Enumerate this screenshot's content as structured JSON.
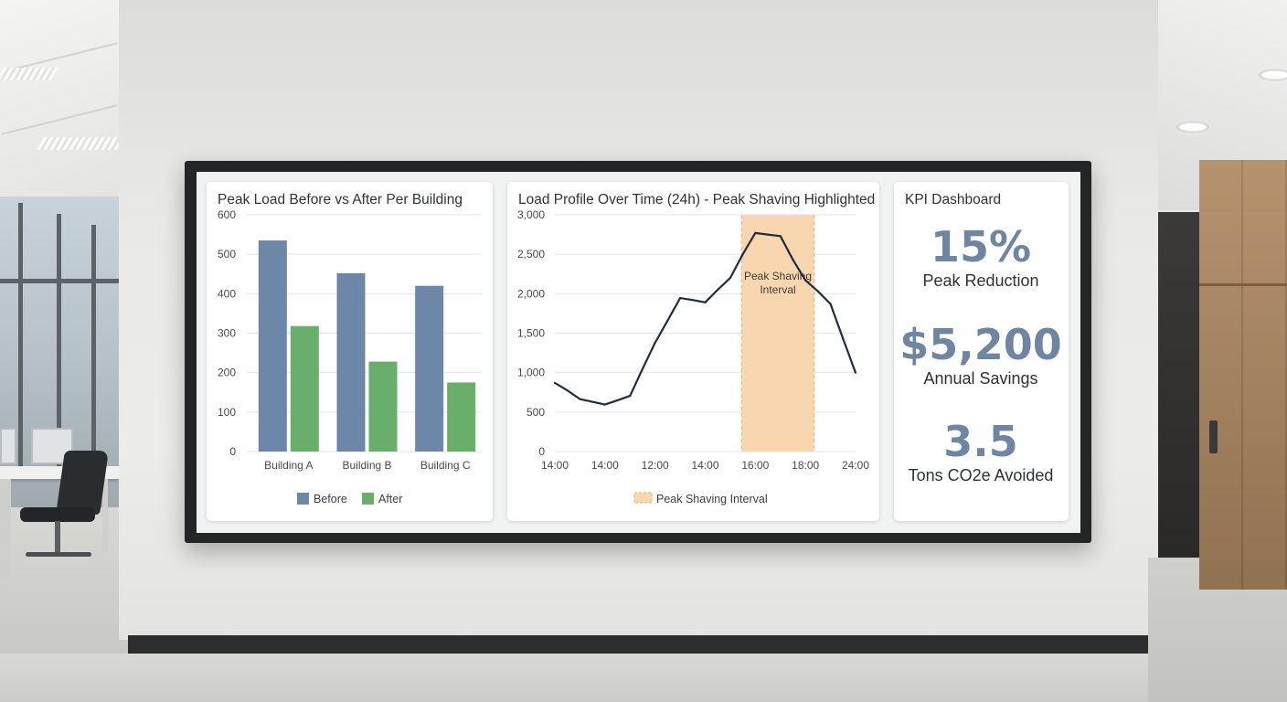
{
  "panels": {
    "bar_chart": {
      "title": "Peak Load Before vs After Per Building"
    },
    "line_chart": {
      "title": "Load Profile Over Time (24h) - Peak Shaving Highlighted",
      "band_label_line1": "Peak Shaving",
      "band_label_line2": "Interval"
    },
    "kpi": {
      "title": "KPI Dashboard",
      "items": [
        {
          "value": "15%",
          "label": "Peak Reduction"
        },
        {
          "value": "$5,200",
          "label": "Annual Savings"
        },
        {
          "value": "3.5",
          "label": "Tons CO2e Avoided"
        }
      ]
    }
  },
  "colors": {
    "before": "#6d87a8",
    "after": "#6aae6c",
    "line": "#1f2d3d",
    "band": "#f8d7b0",
    "band_border": "#e7b07a",
    "kpi_value": "#6f86a2"
  },
  "chart_data": [
    {
      "type": "bar",
      "title": "Peak Load Before vs After Per Building",
      "categories": [
        "Building A",
        "Building B",
        "Building C"
      ],
      "series": [
        {
          "name": "Before",
          "values": [
            535,
            452,
            420
          ]
        },
        {
          "name": "After",
          "values": [
            318,
            228,
            175
          ]
        }
      ],
      "yticks": [
        "0",
        "100",
        "200",
        "300",
        "400",
        "500",
        "600"
      ],
      "ylim": [
        0,
        600
      ],
      "legend": "bottom",
      "grid": true
    },
    {
      "type": "line",
      "title": "Load Profile Over Time (24h) - Peak Shaving Highlighted",
      "x_tick_labels": [
        "14:00",
        "14:00",
        "12:00",
        "14:00",
        "16:00",
        "18:00",
        "24:00"
      ],
      "x_range": [
        0,
        24
      ],
      "x": [
        0,
        1,
        2,
        3,
        4,
        5,
        6,
        7,
        8,
        9,
        10,
        11,
        12,
        13,
        14,
        15,
        16,
        17,
        18,
        19,
        20,
        21,
        22,
        23,
        24
      ],
      "values": [
        870,
        775,
        665,
        630,
        595,
        650,
        705,
        1050,
        1380,
        1660,
        1945,
        1920,
        1890,
        2050,
        2200,
        2500,
        2770,
        2750,
        2730,
        2430,
        2170,
        2030,
        1870,
        1430,
        1000
      ],
      "yticks": [
        "0",
        "500",
        "1,000",
        "1,500",
        "2,000",
        "2,500",
        "3,000"
      ],
      "ylim": [
        0,
        3000
      ],
      "highlight": {
        "from": 14.9,
        "to": 20.7,
        "label": "Peak Shaving Interval"
      },
      "legend": [
        {
          "name": "Peak Shaving Interval"
        }
      ],
      "grid": true
    }
  ]
}
